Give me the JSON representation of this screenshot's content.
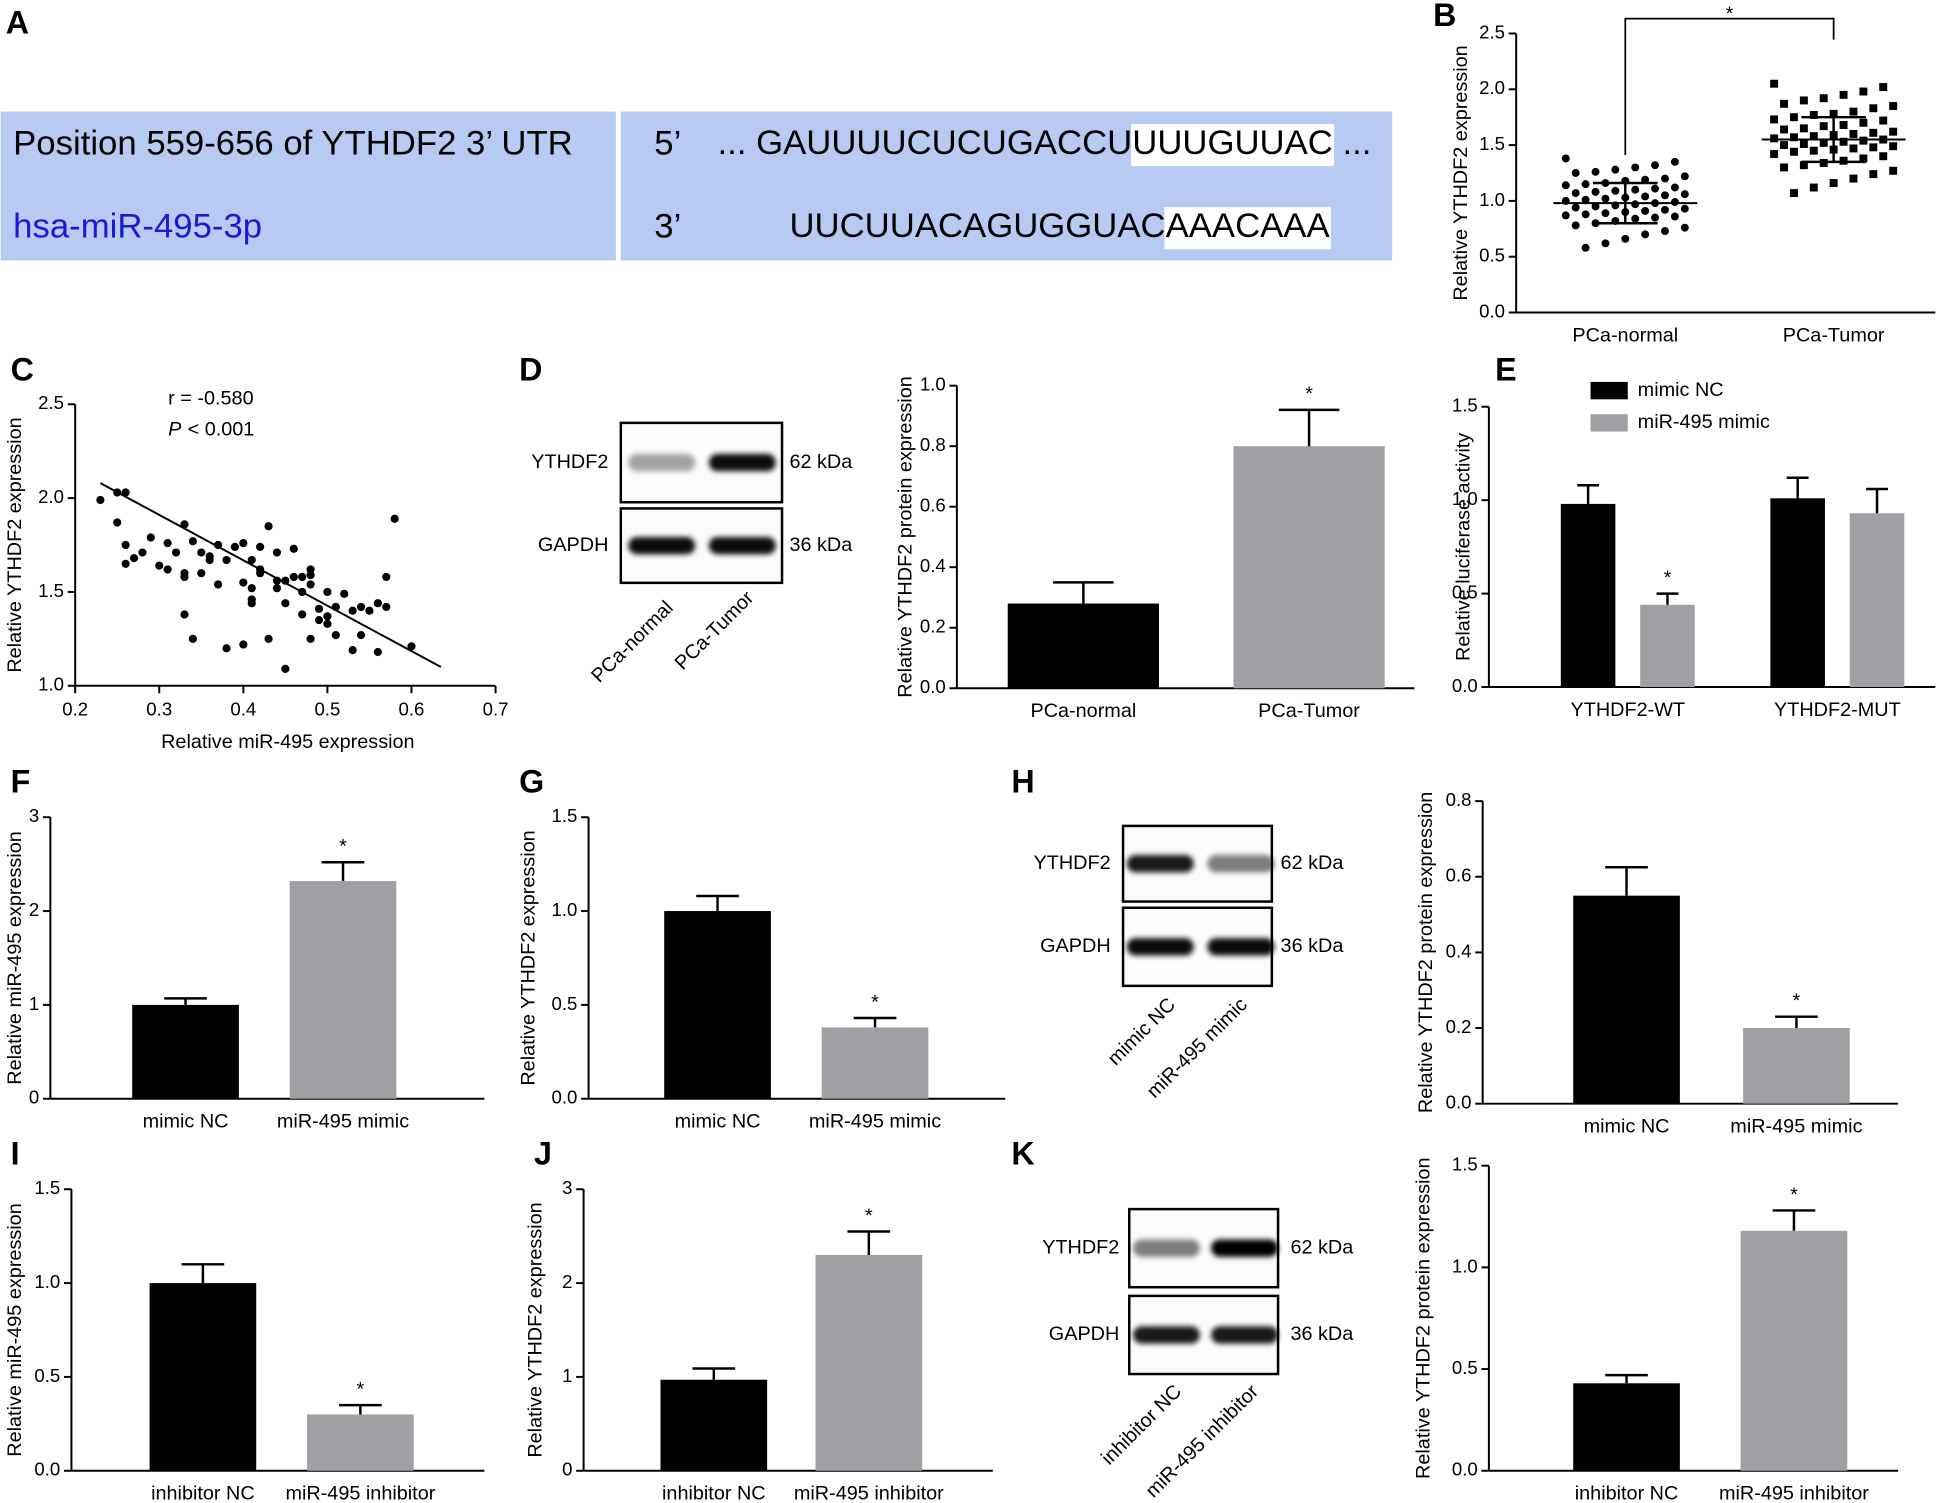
{
  "sequence_panel": {
    "panel": "A",
    "rows": [
      {
        "name": "Position 559-656 of YTHDF2 3’ UTR",
        "end": "5’",
        "before": "... GAUUUUCUCUGACCU",
        "match": "UUUGUUAC",
        "after": " ..."
      },
      {
        "name": "hsa-miR-495-3p",
        "end": "3’",
        "before": "UUCUUACAGUGGUAC",
        "match": "AAACAAA"
      }
    ]
  },
  "blots": [
    {
      "panel": "D",
      "rows": [
        "YTHDF2",
        "GAPDH"
      ],
      "sizes": [
        "62 kDa",
        "36 kDa"
      ],
      "lanes": [
        "PCa-normal",
        "PCa-Tumor"
      ]
    },
    {
      "panel": "H",
      "rows": [
        "YTHDF2",
        "GAPDH"
      ],
      "sizes": [
        "62 kDa",
        "36 kDa"
      ],
      "lanes": [
        "mimic NC",
        "miR-495 mimic"
      ]
    },
    {
      "panel": "K",
      "rows": [
        "YTHDF2",
        "GAPDH"
      ],
      "sizes": [
        "62 kDa",
        "36 kDa"
      ],
      "lanes": [
        "inhibitor NC",
        "miR-495 inhibitor"
      ]
    }
  ],
  "chart_data": [
    {
      "type": "dotplot",
      "panel": "B",
      "ylabel": "Relative YTHDF2 expression",
      "categories": [
        "PCa-normal",
        "PCa-Tumor"
      ],
      "points": [
        [
          1.38,
          1.35,
          1.32,
          1.3,
          1.28,
          1.26,
          1.25,
          1.22,
          1.2,
          1.19,
          1.18,
          1.16,
          1.15,
          1.14,
          1.12,
          1.11,
          1.1,
          1.09,
          1.08,
          1.07,
          1.06,
          1.05,
          1.04,
          1.03,
          1.02,
          1.01,
          1.0,
          0.99,
          0.98,
          0.97,
          0.96,
          0.95,
          0.94,
          0.93,
          0.92,
          0.91,
          0.9,
          0.89,
          0.88,
          0.87,
          0.86,
          0.85,
          0.84,
          0.82,
          0.8,
          0.78,
          0.76,
          0.73,
          0.7,
          0.66,
          0.62,
          0.58
        ],
        [
          2.05,
          2.02,
          1.98,
          1.95,
          1.92,
          1.9,
          1.87,
          1.85,
          1.83,
          1.8,
          1.78,
          1.77,
          1.75,
          1.73,
          1.72,
          1.7,
          1.68,
          1.67,
          1.65,
          1.64,
          1.62,
          1.61,
          1.6,
          1.59,
          1.58,
          1.57,
          1.56,
          1.55,
          1.54,
          1.53,
          1.52,
          1.51,
          1.5,
          1.49,
          1.48,
          1.47,
          1.46,
          1.45,
          1.44,
          1.42,
          1.4,
          1.38,
          1.36,
          1.34,
          1.32,
          1.3,
          1.27,
          1.24,
          1.2,
          1.16,
          1.12,
          1.07
        ]
      ],
      "means": [
        0.98,
        1.55
      ],
      "errors": [
        0.18,
        0.2
      ],
      "color": "#000000",
      "significance": "*",
      "ylim": [
        0,
        2.5
      ],
      "yticks": [
        {
          "value": 0,
          "label": "0.0"
        },
        0.5,
        {
          "value": 1,
          "label": "1.0"
        },
        1.5,
        {
          "value": 2,
          "label": "2.0"
        },
        2.5
      ]
    },
    {
      "type": "scatter",
      "panel": "C",
      "ylabel": "Relative YTHDF2 expression",
      "xlabel": "Relative miR-495 expression",
      "r_text": "r = -0.580",
      "p_symbol": "P",
      "p_text": "< 0.001",
      "color": "#000000",
      "x": [
        0.23,
        0.25,
        0.25,
        0.26,
        0.26,
        0.26,
        0.27,
        0.28,
        0.29,
        0.3,
        0.31,
        0.31,
        0.32,
        0.33,
        0.33,
        0.33,
        0.33,
        0.34,
        0.34,
        0.35,
        0.35,
        0.36,
        0.36,
        0.37,
        0.37,
        0.38,
        0.38,
        0.39,
        0.4,
        0.4,
        0.4,
        0.41,
        0.41,
        0.41,
        0.41,
        0.42,
        0.42,
        0.42,
        0.43,
        0.43,
        0.44,
        0.44,
        0.44,
        0.45,
        0.45,
        0.45,
        0.46,
        0.46,
        0.47,
        0.47,
        0.47,
        0.48,
        0.48,
        0.48,
        0.48,
        0.49,
        0.49,
        0.5,
        0.5,
        0.5,
        0.51,
        0.51,
        0.52,
        0.53,
        0.53,
        0.54,
        0.54,
        0.55,
        0.56,
        0.56,
        0.57,
        0.57,
        0.58,
        0.6
      ],
      "y": [
        1.99,
        1.87,
        2.03,
        2.03,
        1.75,
        1.65,
        1.68,
        1.71,
        1.79,
        1.64,
        1.76,
        1.62,
        1.71,
        1.58,
        1.38,
        1.6,
        1.86,
        1.25,
        1.77,
        1.6,
        1.71,
        1.67,
        1.69,
        1.75,
        1.54,
        1.2,
        1.67,
        1.74,
        1.55,
        1.76,
        1.22,
        1.52,
        1.44,
        1.46,
        1.67,
        1.74,
        1.62,
        1.6,
        1.25,
        1.85,
        1.71,
        1.56,
        1.52,
        1.56,
        1.44,
        1.09,
        1.73,
        1.58,
        1.5,
        1.58,
        1.38,
        1.62,
        1.54,
        1.25,
        1.59,
        1.41,
        1.35,
        1.37,
        1.5,
        1.33,
        1.42,
        1.27,
        1.49,
        1.19,
        1.4,
        1.27,
        1.42,
        1.4,
        1.44,
        1.18,
        1.42,
        1.58,
        1.89,
        1.21
      ],
      "fit": {
        "x": [
          0.23,
          0.635
        ],
        "y": [
          2.08,
          1.1
        ]
      },
      "xlim": [
        0.2,
        0.7
      ],
      "xticks": [
        0.2,
        0.3,
        0.4,
        0.5,
        0.6,
        0.7
      ],
      "ylim": [
        1,
        2.5
      ],
      "yticks": [
        {
          "value": 1,
          "label": "1.0"
        },
        1.5,
        {
          "value": 2,
          "label": "2.0"
        },
        2.5
      ]
    },
    {
      "type": "bar",
      "ylabel": "Relative YTHDF2 protein expression",
      "categories": [
        "PCa-normal",
        "PCa-Tumor"
      ],
      "values": [
        0.28,
        0.8
      ],
      "errors": [
        0.07,
        0.12
      ],
      "colors": [
        "#000000",
        "#a0a0a4"
      ],
      "sig": [
        null,
        "*"
      ],
      "ylim": [
        0,
        1
      ],
      "yticks": [
        {
          "value": 0,
          "label": "0.0"
        },
        0.2,
        0.4,
        0.6,
        0.8,
        {
          "value": 1,
          "label": "1.0"
        }
      ]
    },
    {
      "type": "grouped_bar",
      "panel": "E",
      "ylabel": "Relative luciferase activity",
      "categories": [
        "YTHDF2-WT",
        "YTHDF2-MUT"
      ],
      "series": [
        {
          "name": "mimic NC",
          "color": "#000000",
          "values": [
            0.98,
            1.01
          ],
          "errors": [
            0.1,
            0.11
          ],
          "sig": [
            null,
            null
          ]
        },
        {
          "name": "miR-495 mimic",
          "color": "#a0a0a4",
          "values": [
            0.44,
            0.93
          ],
          "errors": [
            0.06,
            0.13
          ],
          "sig": [
            "*",
            null
          ]
        }
      ],
      "ylim": [
        0,
        1.5
      ],
      "yticks": [
        {
          "value": 0,
          "label": "0.0"
        },
        0.5,
        {
          "value": 1,
          "label": "1.0"
        },
        1.5
      ]
    },
    {
      "type": "bar",
      "panel": "F",
      "ylabel": "Relative miR-495 expression",
      "categories": [
        "mimic NC",
        "miR-495 mimic"
      ],
      "values": [
        1.0,
        2.32
      ],
      "errors": [
        0.07,
        0.2
      ],
      "colors": [
        "#000000",
        "#a0a0a4"
      ],
      "sig": [
        null,
        "*"
      ],
      "ylim": [
        0,
        3
      ],
      "yticks": [
        0,
        1,
        2,
        3
      ]
    },
    {
      "type": "bar",
      "panel": "G",
      "ylabel": "Relative YTHDF2 expression",
      "categories": [
        "mimic NC",
        "miR-495 mimic"
      ],
      "values": [
        1.0,
        0.38
      ],
      "errors": [
        0.08,
        0.05
      ],
      "colors": [
        "#000000",
        "#a0a0a4"
      ],
      "sig": [
        null,
        "*"
      ],
      "ylim": [
        0,
        1.5
      ],
      "yticks": [
        {
          "value": 0,
          "label": "0.0"
        },
        0.5,
        {
          "value": 1,
          "label": "1.0"
        },
        1.5
      ]
    },
    {
      "type": "bar",
      "ylabel": "Relative YTHDF2 protein expression",
      "categories": [
        "mimic NC",
        "miR-495 mimic"
      ],
      "values": [
        0.55,
        0.2
      ],
      "errors": [
        0.075,
        0.03
      ],
      "colors": [
        "#000000",
        "#a0a0a4"
      ],
      "sig": [
        null,
        "*"
      ],
      "ylim": [
        0,
        0.8
      ],
      "yticks": [
        {
          "value": 0,
          "label": "0.0"
        },
        0.2,
        0.4,
        0.6,
        0.8
      ]
    },
    {
      "type": "bar",
      "panel": "I",
      "ylabel": "Relative miR-495 expression",
      "categories": [
        "inhibitor NC",
        "miR-495 inhibitor"
      ],
      "values": [
        1.0,
        0.3
      ],
      "errors": [
        0.1,
        0.05
      ],
      "colors": [
        "#000000",
        "#a0a0a4"
      ],
      "sig": [
        null,
        "*"
      ],
      "ylim": [
        0,
        1.5
      ],
      "yticks": [
        {
          "value": 0,
          "label": "0.0"
        },
        0.5,
        {
          "value": 1,
          "label": "1.0"
        },
        1.5
      ]
    },
    {
      "type": "bar",
      "panel": "J",
      "ylabel": "Relative YTHDF2 expression",
      "categories": [
        "inhibitor NC",
        "miR-495 inhibitor"
      ],
      "values": [
        0.97,
        2.3
      ],
      "errors": [
        0.12,
        0.25
      ],
      "colors": [
        "#000000",
        "#a0a0a4"
      ],
      "sig": [
        null,
        "*"
      ],
      "ylim": [
        0,
        3
      ],
      "yticks": [
        0,
        1,
        2,
        3
      ]
    },
    {
      "type": "bar",
      "ylabel": "Relative YTHDF2 protein expression",
      "categories": [
        "inhibitor NC",
        "miR-495 inhibitor"
      ],
      "values": [
        0.43,
        1.18
      ],
      "errors": [
        0.04,
        0.1
      ],
      "colors": [
        "#000000",
        "#a0a0a4"
      ],
      "sig": [
        null,
        "*"
      ],
      "ylim": [
        0,
        1.5
      ],
      "yticks": [
        {
          "value": 0,
          "label": "0.0"
        },
        0.5,
        {
          "value": 1,
          "label": "1.0"
        },
        1.5
      ]
    }
  ]
}
